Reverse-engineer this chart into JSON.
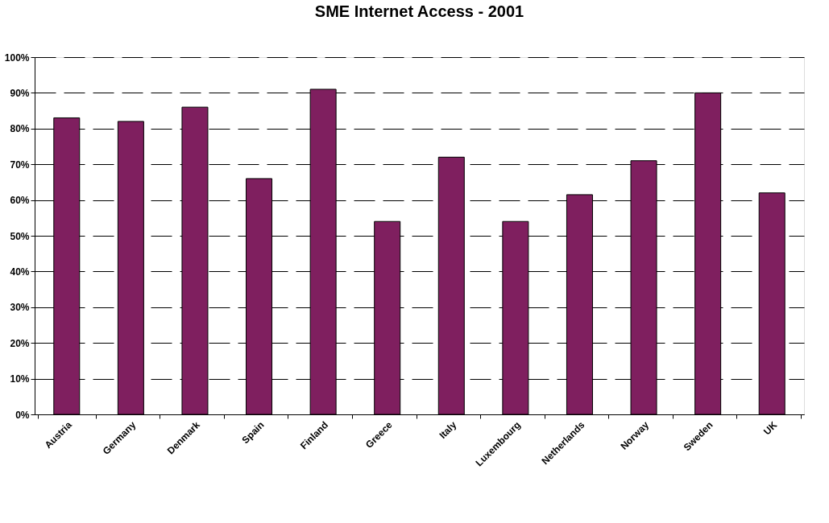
{
  "chart_data": {
    "type": "bar",
    "title": "SME Internet Access - 2001",
    "categories": [
      "Austria",
      "Germany",
      "Denmark",
      "Spain",
      "Finland",
      "Greece",
      "Italy",
      "Luxembourg",
      "Netherlands",
      "Norway",
      "Sweden",
      "UK"
    ],
    "values": [
      83,
      82,
      86,
      66,
      91,
      54,
      72,
      54,
      61.5,
      71,
      90,
      62
    ],
    "color": "#7f1f5f",
    "ylim": [
      0,
      100
    ],
    "yticks": [
      {
        "value": 0,
        "label": "0%"
      },
      {
        "value": 10,
        "label": "10%"
      },
      {
        "value": 20,
        "label": "20%"
      },
      {
        "value": 30,
        "label": "30%"
      },
      {
        "value": 40,
        "label": "40%"
      },
      {
        "value": 50,
        "label": "50%"
      },
      {
        "value": 60,
        "label": "60%"
      },
      {
        "value": 70,
        "label": "70%"
      },
      {
        "value": 80,
        "label": "80%"
      },
      {
        "value": 90,
        "label": "90%"
      },
      {
        "value": 100,
        "label": "100%"
      }
    ],
    "grid": "y",
    "line_style": "dashed"
  }
}
